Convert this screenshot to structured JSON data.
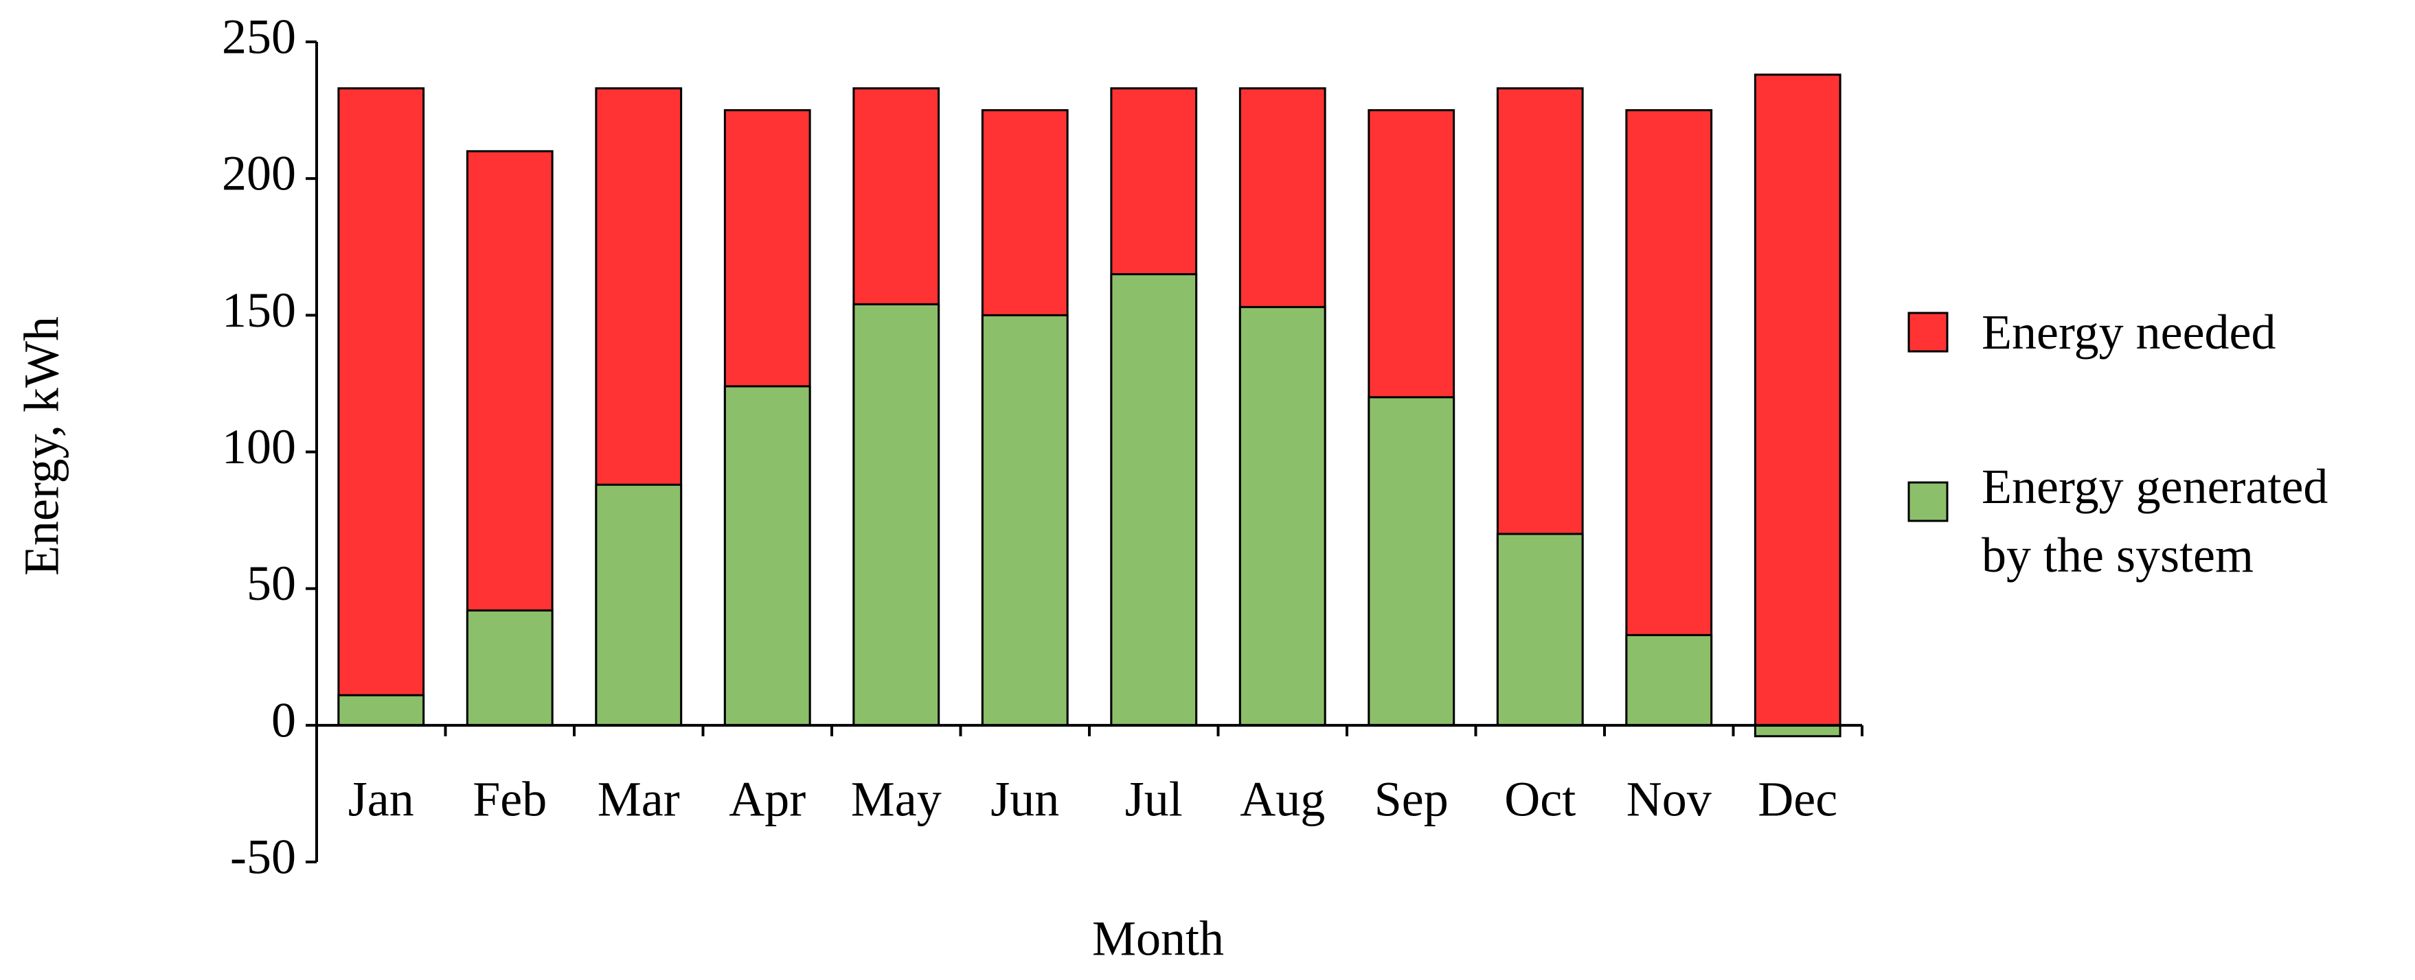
{
  "chart_data": {
    "type": "bar",
    "overlap": true,
    "x_label": "Month",
    "y_label": "Energy, kWh",
    "categories": [
      "Jan",
      "Feb",
      "Mar",
      "Apr",
      "May",
      "Jun",
      "Jul",
      "Aug",
      "Sep",
      "Oct",
      "Nov",
      "Dec"
    ],
    "series": [
      {
        "name": "Energy needed",
        "color": "#ff3333",
        "values": [
          233,
          210,
          233,
          225,
          233,
          225,
          233,
          233,
          225,
          233,
          225,
          238
        ]
      },
      {
        "name": "Energy generated by the system",
        "color": "#8cbf6a",
        "values": [
          11,
          42,
          88,
          124,
          154,
          150,
          165,
          153,
          120,
          70,
          33,
          -4
        ]
      }
    ],
    "ylim": [
      -50,
      250
    ],
    "yticks": [
      -50,
      0,
      50,
      100,
      150,
      200,
      250
    ],
    "grid": false,
    "legend": "right"
  }
}
